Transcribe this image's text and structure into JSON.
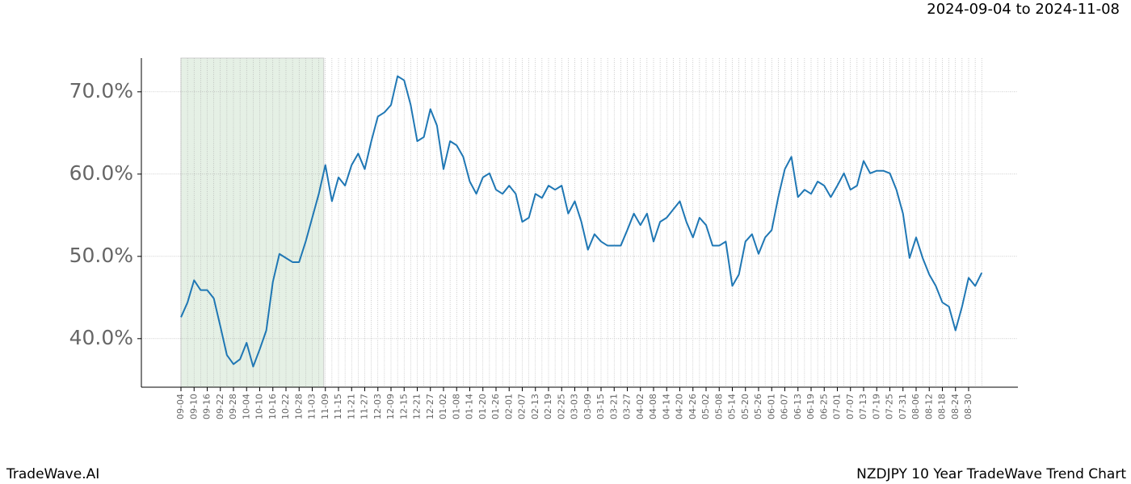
{
  "chart_data": {
    "type": "line",
    "title": "NZDJPY 10 Year TradeWave Trend Chart",
    "subtitle": "2024-09-04 to 2024-11-08",
    "source": "TradeWave.AI",
    "categories": [
      "09-04",
      null,
      "09-10",
      null,
      "09-16",
      null,
      "09-22",
      null,
      "09-28",
      null,
      "10-04",
      null,
      "10-10",
      null,
      "10-16",
      null,
      "10-22",
      null,
      "10-28",
      null,
      "11-03",
      null,
      "11-09",
      null,
      "11-15",
      null,
      "11-21",
      null,
      "11-27",
      null,
      "12-03",
      null,
      "12-09",
      null,
      "12-15",
      null,
      "12-21",
      null,
      "12-27",
      null,
      "01-02",
      null,
      "01-08",
      null,
      "01-14",
      null,
      "01-20",
      null,
      "01-26",
      null,
      "02-01",
      null,
      "02-07",
      null,
      "02-13",
      null,
      "02-19",
      null,
      "02-25",
      null,
      "03-03",
      null,
      "03-09",
      null,
      "03-15",
      null,
      "03-21",
      null,
      "03-27",
      null,
      "04-02",
      null,
      "04-08",
      null,
      "04-14",
      null,
      "04-20",
      null,
      "04-26",
      null,
      "05-02",
      null,
      "05-08",
      null,
      "05-14",
      null,
      "05-20",
      null,
      "05-26",
      null,
      "06-01",
      null,
      "06-07",
      null,
      "06-13",
      null,
      "06-19",
      null,
      "06-25",
      null,
      "07-01",
      null,
      "07-07",
      null,
      "07-13",
      null,
      "07-19",
      null,
      "07-25",
      null,
      "07-31",
      null,
      "08-06",
      null,
      "08-12",
      null,
      "08-18",
      null,
      "08-24",
      null,
      "08-30",
      null,
      null
    ],
    "series": [
      {
        "color": "#1f77b4",
        "values": [
          42.6,
          44.4,
          47.1,
          45.9,
          45.9,
          44.9,
          41.5,
          38.0,
          36.9,
          37.5,
          39.5,
          36.6,
          38.7,
          41.0,
          46.9,
          50.3,
          49.8,
          49.3,
          49.3,
          51.8,
          54.7,
          57.6,
          61.1,
          56.7,
          59.6,
          58.6,
          61.1,
          62.5,
          60.6,
          64.0,
          67.0,
          67.5,
          68.4,
          71.9,
          71.4,
          68.4,
          64.0,
          64.5,
          67.9,
          65.9,
          60.6,
          64.0,
          63.5,
          62.1,
          59.1,
          57.6,
          59.6,
          60.1,
          58.1,
          57.6,
          58.6,
          57.6,
          54.2,
          54.7,
          57.6,
          57.1,
          58.6,
          58.1,
          58.6,
          55.2,
          56.7,
          54.2,
          50.8,
          52.7,
          51.8,
          51.3,
          51.3,
          51.3,
          53.2,
          55.2,
          53.8,
          55.2,
          51.8,
          54.2,
          54.7,
          55.7,
          56.7,
          54.2,
          52.3,
          54.7,
          53.8,
          51.3,
          51.3,
          51.8,
          46.4,
          47.8,
          51.8,
          52.7,
          50.3,
          52.3,
          53.2,
          57.2,
          60.6,
          62.1,
          57.2,
          58.1,
          57.6,
          59.1,
          58.6,
          57.2,
          58.6,
          60.1,
          58.1,
          58.6,
          61.6,
          60.1,
          60.4,
          60.4,
          60.1,
          58.1,
          55.2,
          49.8,
          52.3,
          49.8,
          47.8,
          46.4,
          44.4,
          43.9,
          41.0,
          43.9,
          47.4,
          46.4,
          48.0
        ]
      }
    ],
    "ylim": [
      34.1,
      74.1
    ],
    "yticks": [
      {
        "value": 40,
        "label": "40.0%"
      },
      {
        "value": 50,
        "label": "50.0%"
      },
      {
        "value": 60,
        "label": "60.0%"
      },
      {
        "value": 70,
        "label": "70.0%"
      }
    ],
    "grid": true,
    "highlight_color": "#e5f0e5"
  }
}
